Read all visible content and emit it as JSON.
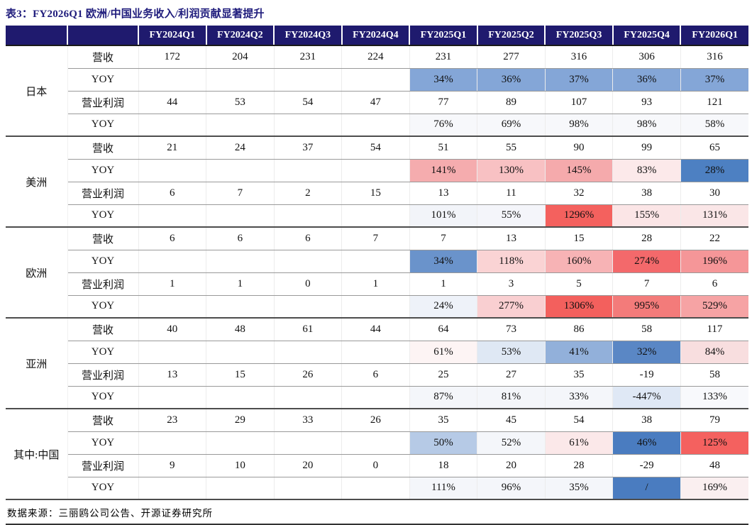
{
  "title": "表3：FY2026Q1 欧洲/中国业务收入/利润贡献显著提升",
  "source": "数据来源：三丽鸥公司公告、开源证券研究所",
  "columns": [
    "FY2024Q1",
    "FY2024Q2",
    "FY2024Q3",
    "FY2024Q4",
    "FY2025Q1",
    "FY2025Q2",
    "FY2025Q3",
    "FY2025Q4",
    "FY2026Q1"
  ],
  "colors": {
    "header_bg": "#1F1A6E",
    "title_text": "#1F1C7C",
    "heat_blue_strong": "#4A7CC0",
    "heat_blue_mid": "#84A6D7",
    "heat_red_strong": "#F4615E"
  },
  "sections": [
    {
      "region": "日本",
      "rows": [
        {
          "label": "营收",
          "cells": [
            {
              "v": "172"
            },
            {
              "v": "204"
            },
            {
              "v": "231"
            },
            {
              "v": "224"
            },
            {
              "v": "231"
            },
            {
              "v": "277"
            },
            {
              "v": "316"
            },
            {
              "v": "306"
            },
            {
              "v": "316"
            }
          ]
        },
        {
          "label": "YOY",
          "cells": [
            {
              "v": ""
            },
            {
              "v": ""
            },
            {
              "v": ""
            },
            {
              "v": ""
            },
            {
              "v": "34%",
              "bg": "#84A6D7"
            },
            {
              "v": "36%",
              "bg": "#84A6D7"
            },
            {
              "v": "37%",
              "bg": "#84A6D7"
            },
            {
              "v": "36%",
              "bg": "#84A6D7"
            },
            {
              "v": "37%",
              "bg": "#84A6D7"
            }
          ]
        },
        {
          "label": "营业利润",
          "cells": [
            {
              "v": "44"
            },
            {
              "v": "53"
            },
            {
              "v": "54"
            },
            {
              "v": "47"
            },
            {
              "v": "77"
            },
            {
              "v": "89"
            },
            {
              "v": "107"
            },
            {
              "v": "93"
            },
            {
              "v": "121"
            }
          ]
        },
        {
          "label": "YOY",
          "cells": [
            {
              "v": ""
            },
            {
              "v": ""
            },
            {
              "v": ""
            },
            {
              "v": ""
            },
            {
              "v": "76%",
              "bg": "#F7F8FB"
            },
            {
              "v": "69%",
              "bg": "#F7F8FB"
            },
            {
              "v": "98%",
              "bg": "#F7F8FB"
            },
            {
              "v": "98%",
              "bg": "#F7F8FB"
            },
            {
              "v": "58%",
              "bg": "#F7F8FB"
            }
          ]
        }
      ]
    },
    {
      "region": "美洲",
      "rows": [
        {
          "label": "营收",
          "cells": [
            {
              "v": "21"
            },
            {
              "v": "24"
            },
            {
              "v": "37"
            },
            {
              "v": "54"
            },
            {
              "v": "51"
            },
            {
              "v": "55"
            },
            {
              "v": "90"
            },
            {
              "v": "99"
            },
            {
              "v": "65"
            }
          ]
        },
        {
          "label": "YOY",
          "cells": [
            {
              "v": ""
            },
            {
              "v": ""
            },
            {
              "v": ""
            },
            {
              "v": ""
            },
            {
              "v": "141%",
              "bg": "#F5ACAE"
            },
            {
              "v": "130%",
              "bg": "#F8C1C3"
            },
            {
              "v": "145%",
              "bg": "#F5AAAC"
            },
            {
              "v": "83%",
              "bg": "#FCE9EA"
            },
            {
              "v": "28%",
              "bg": "#4D80C2"
            }
          ]
        },
        {
          "label": "营业利润",
          "cells": [
            {
              "v": "6"
            },
            {
              "v": "7"
            },
            {
              "v": "2"
            },
            {
              "v": "15"
            },
            {
              "v": "13"
            },
            {
              "v": "11"
            },
            {
              "v": "32"
            },
            {
              "v": "38"
            },
            {
              "v": "30"
            }
          ]
        },
        {
          "label": "YOY",
          "cells": [
            {
              "v": ""
            },
            {
              "v": ""
            },
            {
              "v": ""
            },
            {
              "v": ""
            },
            {
              "v": "101%",
              "bg": "#F2F4F9"
            },
            {
              "v": "55%",
              "bg": "#F4F5FA"
            },
            {
              "v": "1296%",
              "bg": "#F4615E"
            },
            {
              "v": "155%",
              "bg": "#FBE5E6"
            },
            {
              "v": "131%",
              "bg": "#FAE6E7"
            }
          ]
        }
      ]
    },
    {
      "region": "欧洲",
      "rows": [
        {
          "label": "营收",
          "cells": [
            {
              "v": "6"
            },
            {
              "v": "6"
            },
            {
              "v": "6"
            },
            {
              "v": "7"
            },
            {
              "v": "7"
            },
            {
              "v": "13"
            },
            {
              "v": "15"
            },
            {
              "v": "28"
            },
            {
              "v": "22"
            }
          ]
        },
        {
          "label": "YOY",
          "cells": [
            {
              "v": ""
            },
            {
              "v": ""
            },
            {
              "v": ""
            },
            {
              "v": ""
            },
            {
              "v": "34%",
              "bg": "#6A93CB"
            },
            {
              "v": "118%",
              "bg": "#FAD3D4"
            },
            {
              "v": "160%",
              "bg": "#F7B3B5"
            },
            {
              "v": "274%",
              "bg": "#F3696B"
            },
            {
              "v": "196%",
              "bg": "#F59698"
            }
          ]
        },
        {
          "label": "营业利润",
          "cells": [
            {
              "v": "1"
            },
            {
              "v": "1"
            },
            {
              "v": "0"
            },
            {
              "v": "1"
            },
            {
              "v": "1"
            },
            {
              "v": "3"
            },
            {
              "v": "5"
            },
            {
              "v": "7"
            },
            {
              "v": "6"
            }
          ]
        },
        {
          "label": "YOY",
          "cells": [
            {
              "v": ""
            },
            {
              "v": ""
            },
            {
              "v": ""
            },
            {
              "v": ""
            },
            {
              "v": "24%",
              "bg": "#EEF2F9"
            },
            {
              "v": "277%",
              "bg": "#F9CFD1"
            },
            {
              "v": "1306%",
              "bg": "#F3605D"
            },
            {
              "v": "995%",
              "bg": "#F37B7A"
            },
            {
              "v": "529%",
              "bg": "#F6A3A4"
            }
          ]
        }
      ]
    },
    {
      "region": "亚洲",
      "rows": [
        {
          "label": "营收",
          "cells": [
            {
              "v": "40"
            },
            {
              "v": "48"
            },
            {
              "v": "61"
            },
            {
              "v": "44"
            },
            {
              "v": "64"
            },
            {
              "v": "73"
            },
            {
              "v": "86"
            },
            {
              "v": "58"
            },
            {
              "v": "117"
            }
          ]
        },
        {
          "label": "YOY",
          "cells": [
            {
              "v": ""
            },
            {
              "v": ""
            },
            {
              "v": ""
            },
            {
              "v": ""
            },
            {
              "v": "61%",
              "bg": "#FDF4F4"
            },
            {
              "v": "53%",
              "bg": "#DFE8F4"
            },
            {
              "v": "41%",
              "bg": "#92B0DA"
            },
            {
              "v": "32%",
              "bg": "#5A87C5"
            },
            {
              "v": "84%",
              "bg": "#F8DEDF"
            }
          ]
        },
        {
          "label": "营业利润",
          "cells": [
            {
              "v": "13"
            },
            {
              "v": "15"
            },
            {
              "v": "26"
            },
            {
              "v": "6"
            },
            {
              "v": "25"
            },
            {
              "v": "27"
            },
            {
              "v": "35"
            },
            {
              "v": "-19"
            },
            {
              "v": "58"
            }
          ]
        },
        {
          "label": "YOY",
          "cells": [
            {
              "v": ""
            },
            {
              "v": ""
            },
            {
              "v": ""
            },
            {
              "v": ""
            },
            {
              "v": "87%",
              "bg": "#F4F6FA"
            },
            {
              "v": "81%",
              "bg": "#F4F6FA"
            },
            {
              "v": "33%",
              "bg": "#F4F6FA"
            },
            {
              "v": "-447%",
              "bg": "#DFE8F5"
            },
            {
              "v": "133%",
              "bg": "#F8F9FC"
            }
          ]
        }
      ]
    },
    {
      "region": "其中:中国",
      "rows": [
        {
          "label": "营收",
          "cells": [
            {
              "v": "23"
            },
            {
              "v": "29"
            },
            {
              "v": "33"
            },
            {
              "v": "26"
            },
            {
              "v": "35"
            },
            {
              "v": "45"
            },
            {
              "v": "54"
            },
            {
              "v": "38"
            },
            {
              "v": "79"
            }
          ]
        },
        {
          "label": "YOY",
          "cells": [
            {
              "v": ""
            },
            {
              "v": ""
            },
            {
              "v": ""
            },
            {
              "v": ""
            },
            {
              "v": "50%",
              "bg": "#B6CAE6"
            },
            {
              "v": "52%",
              "bg": "#F4F6FA"
            },
            {
              "v": "61%",
              "bg": "#FBE8E9"
            },
            {
              "v": "46%",
              "bg": "#4A7CC0"
            },
            {
              "v": "125%",
              "bg": "#F4615F"
            }
          ]
        },
        {
          "label": "营业利润",
          "cells": [
            {
              "v": "9"
            },
            {
              "v": "10"
            },
            {
              "v": "20"
            },
            {
              "v": "0"
            },
            {
              "v": "18"
            },
            {
              "v": "20"
            },
            {
              "v": "28"
            },
            {
              "v": "-29"
            },
            {
              "v": "48"
            }
          ]
        },
        {
          "label": "YOY",
          "cells": [
            {
              "v": ""
            },
            {
              "v": ""
            },
            {
              "v": ""
            },
            {
              "v": ""
            },
            {
              "v": "111%",
              "bg": "#F4F6FA"
            },
            {
              "v": "96%",
              "bg": "#F4F6FA"
            },
            {
              "v": "35%",
              "bg": "#F4F6FA"
            },
            {
              "v": "/",
              "bg": "#4A7CC0"
            },
            {
              "v": "169%",
              "bg": "#FAEFF0"
            }
          ]
        }
      ]
    }
  ]
}
